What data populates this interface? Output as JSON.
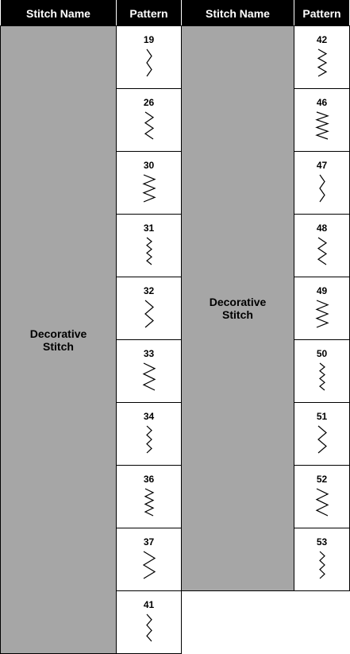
{
  "table": {
    "headers": [
      "Stitch Name",
      "Pattern",
      "Stitch Name",
      "Pattern"
    ],
    "groups": [
      {
        "name": "Decorative Stitch",
        "patterns": [
          "19",
          "26",
          "30",
          "31",
          "32",
          "33",
          "34",
          "36",
          "37",
          "41"
        ]
      },
      {
        "name": "Decorative Stitch",
        "patterns": [
          "42",
          "46",
          "47",
          "48",
          "49",
          "50",
          "51",
          "52",
          "53"
        ]
      }
    ]
  }
}
